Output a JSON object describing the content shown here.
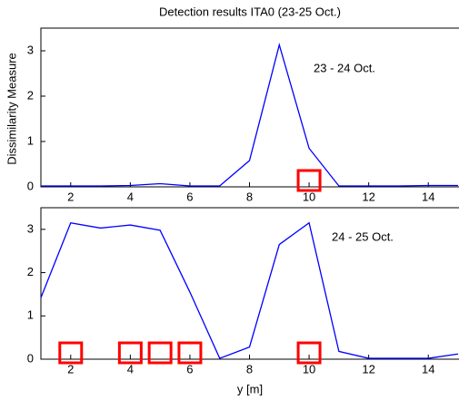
{
  "chart_data": [
    {
      "type": "line",
      "title": "Detection results ITA0 (23-25 Oct.)",
      "ylabel": "Dissimilarity Measure",
      "annotation": "23 - 24 Oct.",
      "x": [
        1,
        2,
        3,
        4,
        5,
        6,
        7,
        8,
        9,
        10,
        11,
        12,
        13,
        14,
        15
      ],
      "values": [
        0.02,
        0.02,
        0.02,
        0.03,
        0.07,
        0.02,
        0.02,
        0.58,
        3.13,
        0.85,
        0.02,
        0.02,
        0.02,
        0.03,
        0.03
      ],
      "color": "#0000ff",
      "detections": [
        10
      ],
      "detection_color": "#ff0000",
      "xlim": [
        1,
        15
      ],
      "xticks": [
        2,
        4,
        6,
        8,
        10,
        12,
        14
      ],
      "ylim": [
        0,
        3.5
      ],
      "yticks": [
        0,
        1,
        2,
        3
      ]
    },
    {
      "type": "line",
      "xlabel": "y [m]",
      "annotation": "24 - 25 Oct.",
      "x": [
        1,
        2,
        3,
        4,
        5,
        6,
        7,
        8,
        9,
        10,
        11,
        12,
        13,
        14,
        15
      ],
      "values": [
        1.42,
        3.15,
        3.03,
        3.1,
        2.98,
        1.55,
        0.02,
        0.28,
        2.65,
        3.15,
        0.18,
        0.02,
        0.02,
        0.02,
        0.12
      ],
      "color": "#0000ff",
      "detections": [
        2,
        4,
        5,
        6,
        10
      ],
      "detection_color": "#ff0000",
      "xlim": [
        1,
        15
      ],
      "xticks": [
        2,
        4,
        6,
        8,
        10,
        12,
        14
      ],
      "ylim": [
        0,
        3.5
      ],
      "yticks": [
        0,
        1,
        2,
        3
      ]
    }
  ]
}
